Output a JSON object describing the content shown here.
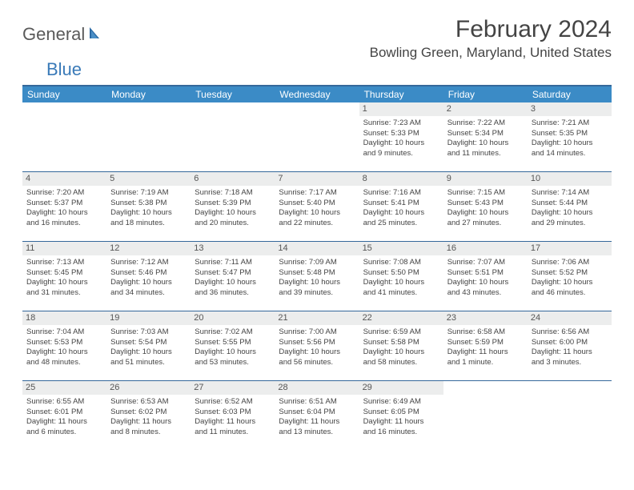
{
  "logo": {
    "text1": "General",
    "text2": "Blue"
  },
  "title": "February 2024",
  "location": "Bowling Green, Maryland, United States",
  "colors": {
    "header_bg": "#3b8bc6",
    "header_text": "#ffffff",
    "border": "#35689b",
    "daynum_bg": "#eceded",
    "logo_gray": "#5a5a5a",
    "logo_blue": "#3a7ab8"
  },
  "weekdays": [
    "Sunday",
    "Monday",
    "Tuesday",
    "Wednesday",
    "Thursday",
    "Friday",
    "Saturday"
  ],
  "weeks": [
    [
      null,
      null,
      null,
      null,
      {
        "n": "1",
        "sr": "Sunrise: 7:23 AM",
        "ss": "Sunset: 5:33 PM",
        "d1": "Daylight: 10 hours",
        "d2": "and 9 minutes."
      },
      {
        "n": "2",
        "sr": "Sunrise: 7:22 AM",
        "ss": "Sunset: 5:34 PM",
        "d1": "Daylight: 10 hours",
        "d2": "and 11 minutes."
      },
      {
        "n": "3",
        "sr": "Sunrise: 7:21 AM",
        "ss": "Sunset: 5:35 PM",
        "d1": "Daylight: 10 hours",
        "d2": "and 14 minutes."
      }
    ],
    [
      {
        "n": "4",
        "sr": "Sunrise: 7:20 AM",
        "ss": "Sunset: 5:37 PM",
        "d1": "Daylight: 10 hours",
        "d2": "and 16 minutes."
      },
      {
        "n": "5",
        "sr": "Sunrise: 7:19 AM",
        "ss": "Sunset: 5:38 PM",
        "d1": "Daylight: 10 hours",
        "d2": "and 18 minutes."
      },
      {
        "n": "6",
        "sr": "Sunrise: 7:18 AM",
        "ss": "Sunset: 5:39 PM",
        "d1": "Daylight: 10 hours",
        "d2": "and 20 minutes."
      },
      {
        "n": "7",
        "sr": "Sunrise: 7:17 AM",
        "ss": "Sunset: 5:40 PM",
        "d1": "Daylight: 10 hours",
        "d2": "and 22 minutes."
      },
      {
        "n": "8",
        "sr": "Sunrise: 7:16 AM",
        "ss": "Sunset: 5:41 PM",
        "d1": "Daylight: 10 hours",
        "d2": "and 25 minutes."
      },
      {
        "n": "9",
        "sr": "Sunrise: 7:15 AM",
        "ss": "Sunset: 5:43 PM",
        "d1": "Daylight: 10 hours",
        "d2": "and 27 minutes."
      },
      {
        "n": "10",
        "sr": "Sunrise: 7:14 AM",
        "ss": "Sunset: 5:44 PM",
        "d1": "Daylight: 10 hours",
        "d2": "and 29 minutes."
      }
    ],
    [
      {
        "n": "11",
        "sr": "Sunrise: 7:13 AM",
        "ss": "Sunset: 5:45 PM",
        "d1": "Daylight: 10 hours",
        "d2": "and 31 minutes."
      },
      {
        "n": "12",
        "sr": "Sunrise: 7:12 AM",
        "ss": "Sunset: 5:46 PM",
        "d1": "Daylight: 10 hours",
        "d2": "and 34 minutes."
      },
      {
        "n": "13",
        "sr": "Sunrise: 7:11 AM",
        "ss": "Sunset: 5:47 PM",
        "d1": "Daylight: 10 hours",
        "d2": "and 36 minutes."
      },
      {
        "n": "14",
        "sr": "Sunrise: 7:09 AM",
        "ss": "Sunset: 5:48 PM",
        "d1": "Daylight: 10 hours",
        "d2": "and 39 minutes."
      },
      {
        "n": "15",
        "sr": "Sunrise: 7:08 AM",
        "ss": "Sunset: 5:50 PM",
        "d1": "Daylight: 10 hours",
        "d2": "and 41 minutes."
      },
      {
        "n": "16",
        "sr": "Sunrise: 7:07 AM",
        "ss": "Sunset: 5:51 PM",
        "d1": "Daylight: 10 hours",
        "d2": "and 43 minutes."
      },
      {
        "n": "17",
        "sr": "Sunrise: 7:06 AM",
        "ss": "Sunset: 5:52 PM",
        "d1": "Daylight: 10 hours",
        "d2": "and 46 minutes."
      }
    ],
    [
      {
        "n": "18",
        "sr": "Sunrise: 7:04 AM",
        "ss": "Sunset: 5:53 PM",
        "d1": "Daylight: 10 hours",
        "d2": "and 48 minutes."
      },
      {
        "n": "19",
        "sr": "Sunrise: 7:03 AM",
        "ss": "Sunset: 5:54 PM",
        "d1": "Daylight: 10 hours",
        "d2": "and 51 minutes."
      },
      {
        "n": "20",
        "sr": "Sunrise: 7:02 AM",
        "ss": "Sunset: 5:55 PM",
        "d1": "Daylight: 10 hours",
        "d2": "and 53 minutes."
      },
      {
        "n": "21",
        "sr": "Sunrise: 7:00 AM",
        "ss": "Sunset: 5:56 PM",
        "d1": "Daylight: 10 hours",
        "d2": "and 56 minutes."
      },
      {
        "n": "22",
        "sr": "Sunrise: 6:59 AM",
        "ss": "Sunset: 5:58 PM",
        "d1": "Daylight: 10 hours",
        "d2": "and 58 minutes."
      },
      {
        "n": "23",
        "sr": "Sunrise: 6:58 AM",
        "ss": "Sunset: 5:59 PM",
        "d1": "Daylight: 11 hours",
        "d2": "and 1 minute."
      },
      {
        "n": "24",
        "sr": "Sunrise: 6:56 AM",
        "ss": "Sunset: 6:00 PM",
        "d1": "Daylight: 11 hours",
        "d2": "and 3 minutes."
      }
    ],
    [
      {
        "n": "25",
        "sr": "Sunrise: 6:55 AM",
        "ss": "Sunset: 6:01 PM",
        "d1": "Daylight: 11 hours",
        "d2": "and 6 minutes."
      },
      {
        "n": "26",
        "sr": "Sunrise: 6:53 AM",
        "ss": "Sunset: 6:02 PM",
        "d1": "Daylight: 11 hours",
        "d2": "and 8 minutes."
      },
      {
        "n": "27",
        "sr": "Sunrise: 6:52 AM",
        "ss": "Sunset: 6:03 PM",
        "d1": "Daylight: 11 hours",
        "d2": "and 11 minutes."
      },
      {
        "n": "28",
        "sr": "Sunrise: 6:51 AM",
        "ss": "Sunset: 6:04 PM",
        "d1": "Daylight: 11 hours",
        "d2": "and 13 minutes."
      },
      {
        "n": "29",
        "sr": "Sunrise: 6:49 AM",
        "ss": "Sunset: 6:05 PM",
        "d1": "Daylight: 11 hours",
        "d2": "and 16 minutes."
      },
      null,
      null
    ]
  ]
}
